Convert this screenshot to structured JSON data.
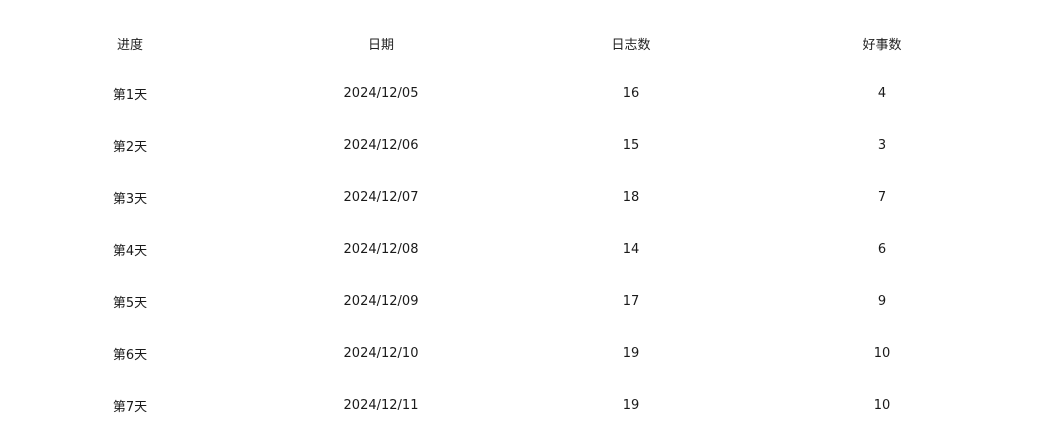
{
  "table": {
    "headers": [
      "进度",
      "日期",
      "日志数",
      "好事数"
    ],
    "rows": [
      [
        "第1天",
        "2024/12/05",
        "16",
        "4"
      ],
      [
        "第2天",
        "2024/12/06",
        "15",
        "3"
      ],
      [
        "第3天",
        "2024/12/07",
        "18",
        "7"
      ],
      [
        "第4天",
        "2024/12/08",
        "14",
        "6"
      ],
      [
        "第5天",
        "2024/12/09",
        "17",
        "9"
      ],
      [
        "第6天",
        "2024/12/10",
        "19",
        "10"
      ],
      [
        "第7天",
        "2024/12/11",
        "19",
        "10"
      ]
    ]
  }
}
